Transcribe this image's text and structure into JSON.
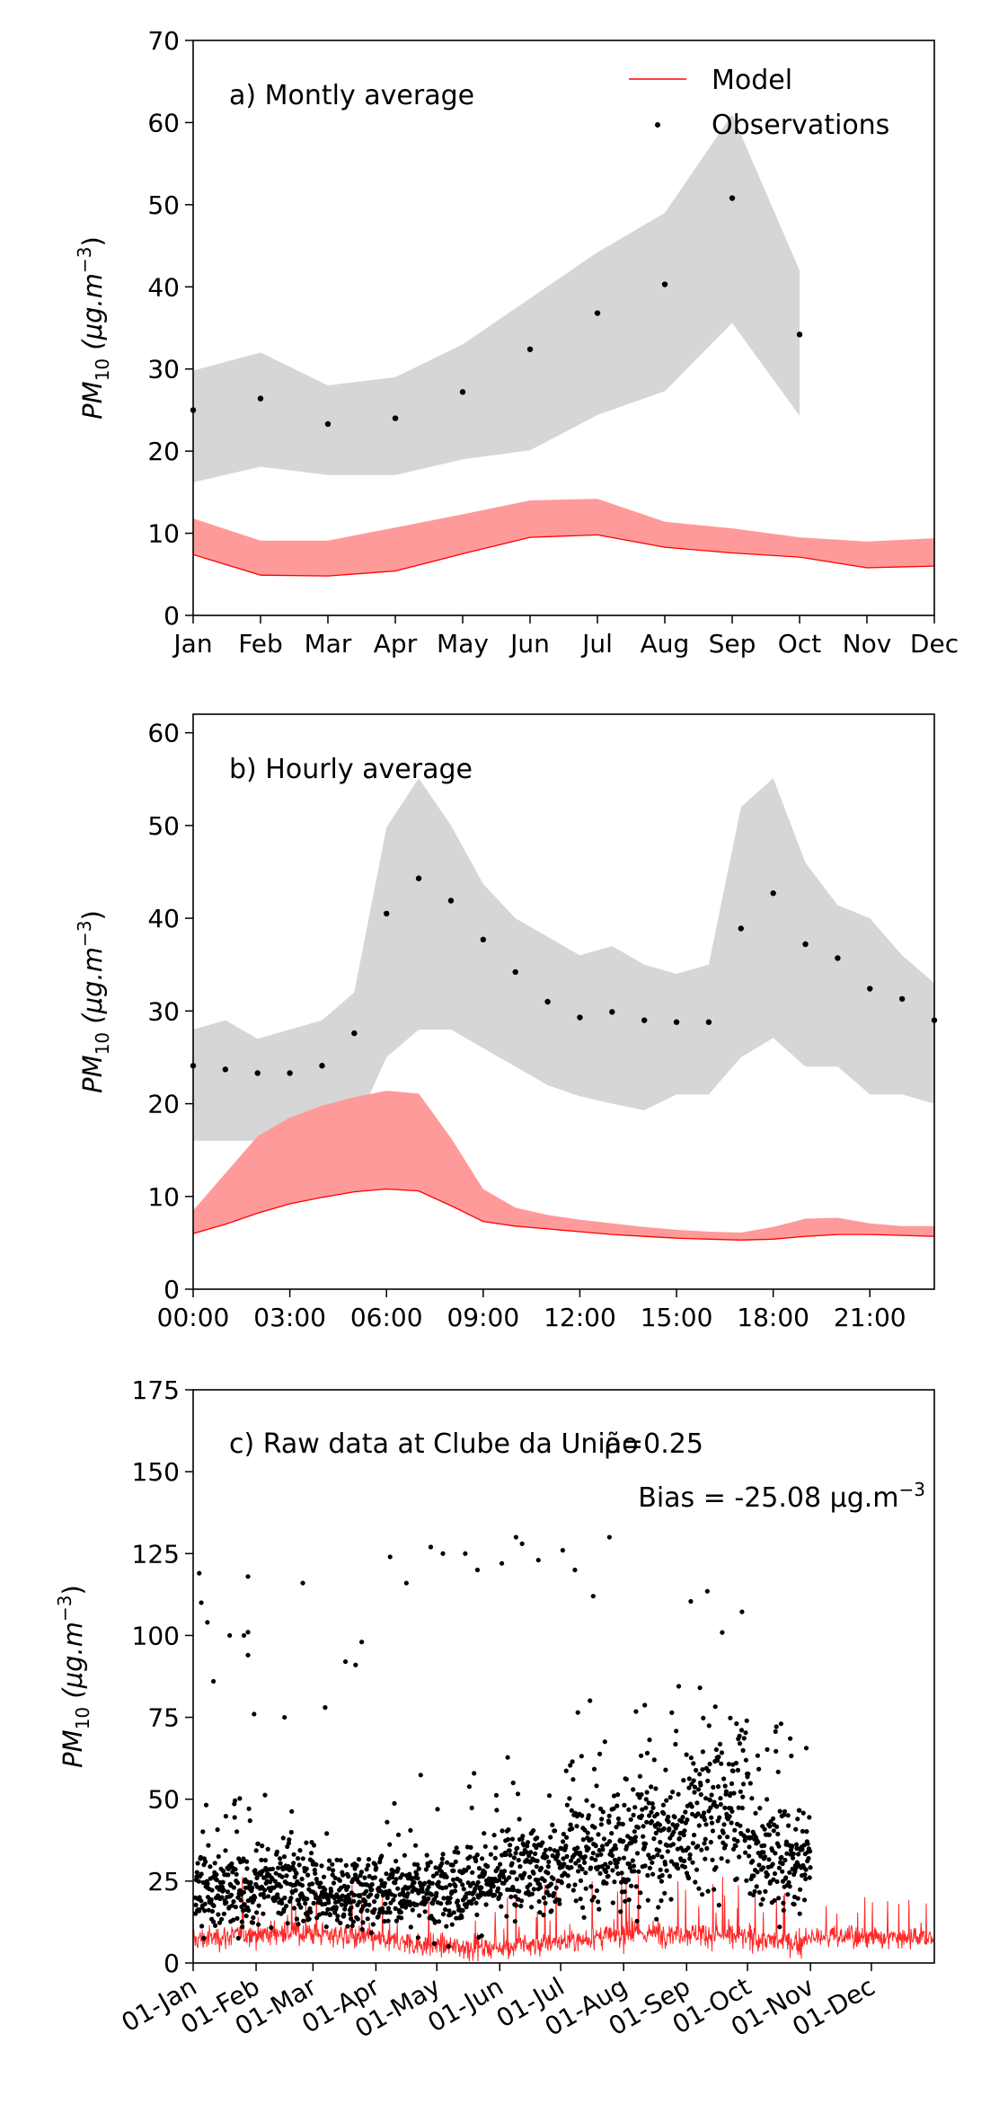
{
  "chart_data": [
    {
      "type": "line",
      "annotation": "a) Montly average",
      "ylabel_base": "PM",
      "ylabel_sub": "10",
      "ylabel_units": "(μg.m",
      "ylabel_exp": "−3",
      "ylabel_close": ")",
      "ylim": [
        0,
        70
      ],
      "yticks": [
        0,
        10,
        20,
        30,
        40,
        50,
        60,
        70
      ],
      "xlim": [
        0,
        11
      ],
      "xticks": [
        0,
        1,
        2,
        3,
        4,
        5,
        6,
        7,
        8,
        9,
        10,
        11
      ],
      "xticklabels": [
        "Jan",
        "Feb",
        "Mar",
        "Apr",
        "May",
        "Jun",
        "Jul",
        "Aug",
        "Sep",
        "Oct",
        "Nov",
        "Dec"
      ],
      "legend": {
        "placement": "top-right",
        "entries": [
          "Model",
          "Observations"
        ]
      },
      "x": [
        0,
        1,
        2,
        3,
        4,
        5,
        6,
        7,
        8,
        9,
        10,
        11
      ],
      "series": [
        {
          "name": "Model",
          "color": "#ff0000",
          "values": [
            7.4,
            4.9,
            4.8,
            5.4,
            7.5,
            9.5,
            9.8,
            8.3,
            7.6,
            7.1,
            5.8,
            6.0
          ],
          "band_low": [
            7.4,
            4.9,
            4.8,
            5.4,
            7.5,
            9.5,
            9.8,
            8.3,
            7.6,
            7.1,
            5.8,
            6.0
          ],
          "band_high": [
            11.8,
            9.1,
            9.1,
            10.7,
            12.3,
            14.0,
            14.2,
            11.4,
            10.6,
            9.5,
            9.0,
            9.4
          ],
          "band_color": "#ff9a9a"
        },
        {
          "name": "Observations",
          "color": "#000000",
          "x": [
            0,
            1,
            2,
            3,
            4,
            5,
            6,
            7,
            8,
            9
          ],
          "values": [
            25.0,
            26.4,
            23.3,
            24.0,
            27.2,
            32.4,
            36.8,
            40.3,
            50.8,
            34.2
          ],
          "band_low": [
            16.2,
            18.1,
            17.1,
            17.1,
            19.0,
            20.1,
            24.4,
            27.3,
            35.6,
            24.3
          ],
          "band_high": [
            29.8,
            32.0,
            28.0,
            29.0,
            33.0,
            38.6,
            44.2,
            49.0,
            61.0,
            42.0
          ],
          "band_color": "#d6d6d6"
        }
      ]
    },
    {
      "type": "line",
      "annotation": "b) Hourly average",
      "ylabel_base": "PM",
      "ylabel_sub": "10",
      "ylabel_units": "(μg.m",
      "ylabel_exp": "−3",
      "ylabel_close": ")",
      "ylim": [
        0,
        62
      ],
      "yticks": [
        0,
        10,
        20,
        30,
        40,
        50,
        60
      ],
      "xlim": [
        0,
        23
      ],
      "xticks": [
        0,
        3,
        6,
        9,
        12,
        15,
        18,
        21
      ],
      "xticklabels": [
        "00:00",
        "03:00",
        "06:00",
        "09:00",
        "12:00",
        "15:00",
        "18:00",
        "21:00"
      ],
      "x": [
        0,
        1,
        2,
        3,
        4,
        5,
        6,
        7,
        8,
        9,
        10,
        11,
        12,
        13,
        14,
        15,
        16,
        17,
        18,
        19,
        20,
        21,
        22,
        23
      ],
      "series": [
        {
          "name": "Model",
          "color": "#ff0000",
          "values": [
            6.0,
            7.0,
            8.2,
            9.2,
            9.9,
            10.5,
            10.8,
            10.6,
            9.0,
            7.3,
            6.8,
            6.5,
            6.2,
            5.9,
            5.7,
            5.5,
            5.4,
            5.3,
            5.4,
            5.7,
            5.9,
            5.9,
            5.8,
            5.7
          ],
          "band_low": [
            6.0,
            7.0,
            8.2,
            9.2,
            9.9,
            10.5,
            10.8,
            10.6,
            9.0,
            7.3,
            6.8,
            6.5,
            6.2,
            5.9,
            5.7,
            5.5,
            5.4,
            5.3,
            5.4,
            5.7,
            5.9,
            5.9,
            5.8,
            5.7
          ],
          "band_high": [
            8.5,
            12.5,
            16.5,
            18.5,
            19.8,
            20.7,
            21.4,
            21.1,
            16.3,
            10.8,
            8.8,
            8.0,
            7.5,
            7.1,
            6.7,
            6.4,
            6.2,
            6.1,
            6.7,
            7.6,
            7.7,
            7.1,
            6.8,
            6.8
          ],
          "band_color": "#ff9a9a"
        },
        {
          "name": "Observations",
          "color": "#000000",
          "values": [
            24.1,
            23.7,
            23.3,
            23.3,
            24.1,
            27.6,
            40.5,
            44.3,
            41.9,
            37.7,
            34.2,
            31.0,
            29.3,
            29.9,
            29.0,
            28.8,
            28.8,
            38.9,
            42.7,
            37.2,
            35.7,
            32.4,
            31.3,
            29.0
          ],
          "band_low": [
            16.0,
            16.0,
            16.0,
            16.0,
            15.1,
            17.3,
            25.0,
            28.0,
            28.0,
            26.0,
            24.0,
            22.0,
            20.8,
            20.0,
            19.3,
            21.0,
            21.0,
            25.0,
            27.1,
            24.0,
            24.0,
            21.0,
            21.0,
            20.0
          ],
          "band_high": [
            28.0,
            29.0,
            27.0,
            28.0,
            29.0,
            32.0,
            49.8,
            55.1,
            50.0,
            43.7,
            40.0,
            38.0,
            36.0,
            37.0,
            35.0,
            34.0,
            35.0,
            52.0,
            55.1,
            46.0,
            41.4,
            40.0,
            36.0,
            33.0
          ],
          "band_color": "#d6d6d6"
        }
      ]
    },
    {
      "type": "scatter",
      "annotation": "c) Raw data at Clube da União",
      "stat_r": "ρ=0.25",
      "stat_bias": "Bias = -25.08 μg.m",
      "stat_bias_exp": "−3",
      "ylabel_base": "PM",
      "ylabel_sub": "10",
      "ylabel_units": "(μg.m",
      "ylabel_exp": "−3",
      "ylabel_close": ")",
      "ylim": [
        0,
        175
      ],
      "yticks": [
        0,
        25,
        50,
        75,
        100,
        125,
        150,
        175
      ],
      "xlim": [
        0,
        365
      ],
      "xticks": [
        0,
        31,
        59,
        90,
        120,
        151,
        181,
        212,
        243,
        273,
        304,
        334
      ],
      "xticklabels": [
        "01-Jan",
        "01-Feb",
        "01-Mar",
        "01-Apr",
        "01-May",
        "01-Jun",
        "01-Jul",
        "01-Aug",
        "01-Sep",
        "01-Oct",
        "01-Nov",
        "01-Dec"
      ],
      "obs_end_day": 304,
      "obs_monthly_median": [
        22,
        25,
        21,
        22,
        24,
        29,
        34,
        38,
        48,
        32
      ],
      "obs_outliers": [
        [
          3,
          119
        ],
        [
          4,
          110
        ],
        [
          7,
          104
        ],
        [
          10,
          86
        ],
        [
          18,
          100
        ],
        [
          25,
          100
        ],
        [
          27,
          118
        ],
        [
          27,
          101
        ],
        [
          27,
          94
        ],
        [
          30,
          76
        ],
        [
          45,
          75
        ],
        [
          54,
          116
        ],
        [
          65,
          78
        ],
        [
          75,
          92
        ],
        [
          80,
          91
        ],
        [
          83,
          98
        ],
        [
          97,
          124
        ],
        [
          105,
          116
        ],
        [
          117,
          127
        ],
        [
          123,
          125
        ],
        [
          134,
          125
        ],
        [
          140,
          120
        ],
        [
          152,
          122
        ],
        [
          159,
          130
        ],
        [
          162,
          128
        ],
        [
          170,
          123
        ],
        [
          182,
          126
        ],
        [
          188,
          120
        ],
        [
          197,
          112
        ],
        [
          205,
          130
        ]
      ],
      "model_mean": 7,
      "model_color": "#ff0000",
      "obs_color": "#000000"
    }
  ]
}
